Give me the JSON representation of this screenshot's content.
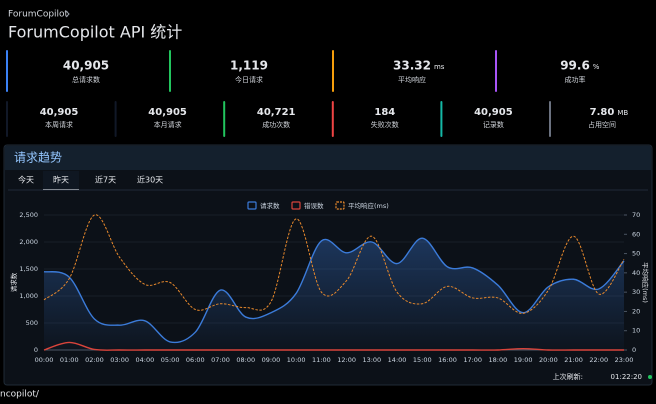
{
  "breadcrumb": "ForumCopilot",
  "header": {
    "title": "ForumCopilot API 统计"
  },
  "stats": {
    "primary": [
      {
        "value": "40,905",
        "label": "总请求数",
        "color": "#3b82f6"
      },
      {
        "value": "1,119",
        "label": "今日请求",
        "color": "#22c55e"
      },
      {
        "value": "33.32",
        "unit": "ms",
        "label": "平均响应",
        "color": "#f59e0b"
      },
      {
        "value": "99.6",
        "unit": "%",
        "label": "成功率",
        "color": "#a855f7"
      }
    ],
    "secondary": [
      {
        "value": "40,905",
        "label": "本周请求",
        "color": "#111827"
      },
      {
        "value": "40,905",
        "label": "本月请求",
        "color": "#111827"
      },
      {
        "value": "40,721",
        "label": "成功次数",
        "color": "#22c55e"
      },
      {
        "value": "184",
        "label": "失败次数",
        "color": "#ef4444"
      },
      {
        "value": "40,905",
        "label": "记录数",
        "color": "#14b8a6"
      },
      {
        "value": "7.80",
        "unit": "MB",
        "label": "占用空间",
        "color": "#6b7280"
      }
    ]
  },
  "panel": {
    "title": "请求趋势",
    "tabs": [
      "今天",
      "昨天",
      "近7天",
      "近30天"
    ],
    "active_tab": 1
  },
  "chart_data": {
    "type": "line",
    "categories": [
      "00:00",
      "01:00",
      "02:00",
      "03:00",
      "04:00",
      "05:00",
      "06:00",
      "07:00",
      "08:00",
      "09:00",
      "10:00",
      "11:00",
      "12:00",
      "13:00",
      "14:00",
      "15:00",
      "16:00",
      "17:00",
      "18:00",
      "19:00",
      "20:00",
      "21:00",
      "22:00",
      "23:00"
    ],
    "y_label": "请求数",
    "y2_label": "平均响应(ms)",
    "ylim": [
      0,
      2500
    ],
    "yticks": [
      0,
      500,
      {
        "value": 1000,
        "label": "1,000"
      },
      {
        "value": 1500,
        "label": "1,500"
      },
      {
        "value": 2000,
        "label": "2,000"
      },
      {
        "value": 2500,
        "label": "2,500"
      }
    ],
    "y2lim": [
      0,
      70
    ],
    "y2ticks": [
      0,
      10,
      20,
      30,
      40,
      50,
      60,
      70
    ],
    "grid": true,
    "legend": "top",
    "series": [
      {
        "name": "请求数",
        "color": "#3b7bd9",
        "fill": true,
        "values": [
          1450,
          1350,
          575,
          460,
          540,
          150,
          330,
          1110,
          610,
          690,
          1050,
          2020,
          1800,
          2000,
          1600,
          2070,
          1540,
          1520,
          1200,
          690,
          1170,
          1310,
          1130,
          1650
        ]
      },
      {
        "name": "错误数",
        "color": "#d9443b",
        "values": [
          0,
          140,
          10,
          0,
          0,
          0,
          0,
          0,
          0,
          0,
          0,
          0,
          0,
          0,
          0,
          0,
          0,
          0,
          0,
          25,
          0,
          0,
          0,
          0
        ]
      },
      {
        "name": "平均响应(ms)",
        "color": "#e8892c",
        "dashed": true,
        "axis": "y2",
        "values": [
          26,
          37,
          70,
          48,
          34,
          35,
          21,
          24,
          22,
          25,
          68,
          30,
          36,
          59,
          30,
          24,
          33,
          27,
          27,
          19,
          31,
          59,
          29,
          47
        ]
      }
    ]
  },
  "last_refresh": {
    "label": "上次刷新:",
    "time": "01:22:20"
  },
  "footer_fragment": "ncopilot/"
}
